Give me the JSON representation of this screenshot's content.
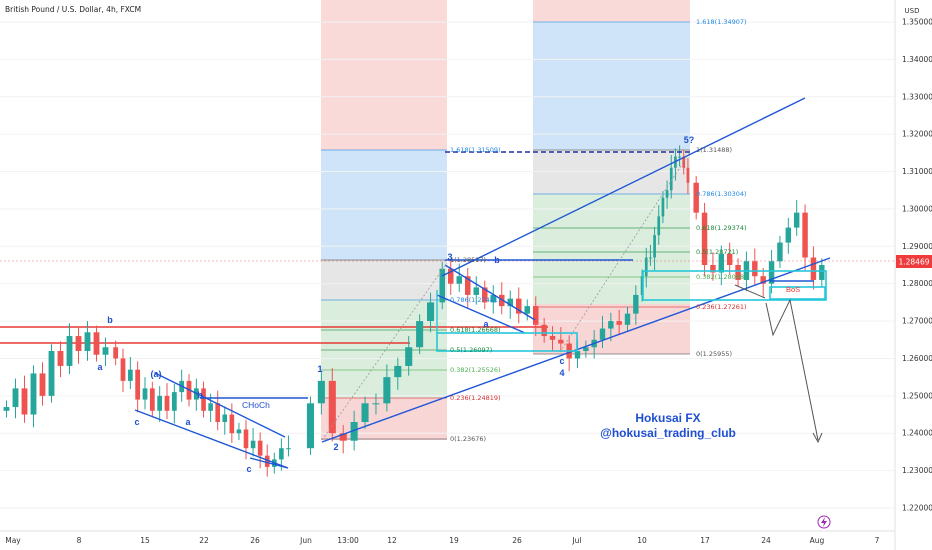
{
  "header": {
    "title": "British Pound / U.S. Dollar, 4h, FXCM",
    "currency": "USD"
  },
  "watermark": {
    "line1": "Hokusai FX",
    "line2": "@hokusai_trading_club"
  },
  "current_price": "1.28469",
  "annotations": {
    "choch": "CHoCh",
    "bos": "BoS",
    "waves": [
      "b",
      "a",
      "c",
      "(a)",
      "b",
      "a",
      "c",
      "1",
      "2",
      "3",
      "b",
      "a",
      "c",
      "4",
      "5?"
    ]
  },
  "fib_sets": [
    {
      "name": "fib-left",
      "levels": [
        {
          "label": "0(1.23676)",
          "color": "#555555"
        },
        {
          "label": "0.236(1.24819)",
          "color": "#d32f2f"
        },
        {
          "label": "0.382(1.25526)",
          "color": "#4caf50"
        },
        {
          "label": "0.5(1.26097)",
          "color": "#1b8a3a"
        },
        {
          "label": "0.618(1.26668)",
          "color": "#1b8a3a"
        },
        {
          "label": "0.786(1.27481)",
          "color": "#1e88e5"
        },
        {
          "label": "1(1.28517)",
          "color": "#555555"
        },
        {
          "label": "1.618(1.31509)",
          "color": "#1e88e5"
        }
      ]
    },
    {
      "name": "fib-right",
      "levels": [
        {
          "label": "0(1.25955)",
          "color": "#555555"
        },
        {
          "label": "0.236(1.27261)",
          "color": "#d32f2f"
        },
        {
          "label": "0.382(1.28068)",
          "color": "#4caf50"
        },
        {
          "label": "0.5(1.28721)",
          "color": "#1b8a3a"
        },
        {
          "label": "0.618(1.29374)",
          "color": "#1b8a3a"
        },
        {
          "label": "0.786(1.30304)",
          "color": "#1e88e5"
        },
        {
          "label": "1(1.31488)",
          "color": "#555555"
        },
        {
          "label": "1.618(1.34907)",
          "color": "#1e88e5"
        }
      ]
    }
  ],
  "chart_data": {
    "type": "candlestick",
    "symbol": "GBPUSD",
    "timeframe": "4h",
    "ylim": [
      1.215,
      1.355
    ],
    "y_ticks": [
      "1.35000",
      "1.34000",
      "1.33000",
      "1.32000",
      "1.31000",
      "1.30000",
      "1.29000",
      "1.28000",
      "1.27000",
      "1.26000",
      "1.25000",
      "1.24000",
      "1.23000",
      "1.22000"
    ],
    "x_ticks": [
      "May",
      "8",
      "15",
      "22",
      "26",
      "Jun",
      "13:00",
      "12",
      "19",
      "26",
      "Jul",
      "10",
      "17",
      "24",
      "Aug",
      "7"
    ],
    "price_path": [
      [
        1.247,
        1.252,
        1.245,
        1.256,
        1.25,
        1.262,
        1.258,
        1.266,
        1.262,
        1.267,
        1.261,
        1.263
      ],
      [
        1.26,
        1.254,
        1.257,
        1.249,
        1.252,
        1.246,
        1.25,
        1.246,
        1.251,
        1.254,
        1.249,
        1.252
      ],
      [
        1.246,
        1.248,
        1.243,
        1.245,
        1.24,
        1.241,
        1.236,
        1.238,
        1.234,
        1.231,
        1.233,
        1.236,
        1.236
      ],
      [
        1.248,
        1.254,
        1.24,
        1.238,
        1.243,
        1.248,
        1.248,
        1.255,
        1.258,
        1.263,
        1.27,
        1.275
      ],
      [
        1.284,
        1.28,
        1.282,
        1.277,
        1.279,
        1.275,
        1.277,
        1.274,
        1.276,
        1.272,
        1.274,
        1.269
      ],
      [
        1.266,
        1.265,
        1.264,
        1.26,
        1.262,
        1.263,
        1.265,
        1.268,
        1.27,
        1.269,
        1.272,
        1.277
      ],
      [
        1.282,
        1.287,
        1.287,
        1.293,
        1.298,
        1.303,
        1.305,
        1.311,
        1.314,
        1.314,
        1.311,
        1.307
      ],
      [
        1.299,
        1.285,
        1.283,
        1.288,
        1.285,
        1.281,
        1.286,
        1.282,
        1.28,
        1.286,
        1.291,
        1.295,
        1.299,
        1.287,
        1.281,
        1.285
      ]
    ]
  }
}
